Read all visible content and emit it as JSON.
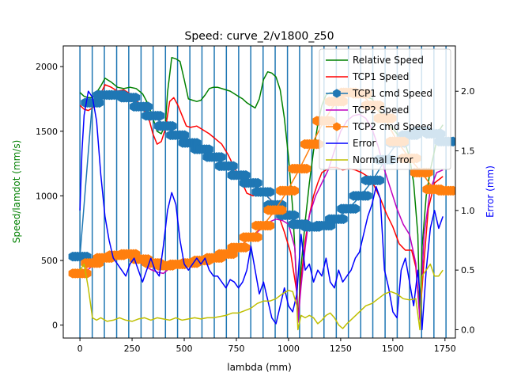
{
  "chart_data": {
    "type": "line",
    "title": "Speed: curve_2/v1800_z50",
    "xlabel": "lambda (mm)",
    "ylabel": "Speed/lamdot (mm/s)",
    "y2label": "Error (mm)",
    "xlim": [
      -80,
      1800
    ],
    "ylim": [
      -100,
      2160
    ],
    "y2lim": [
      -0.07,
      2.38
    ],
    "xticks": [
      0,
      250,
      500,
      750,
      1000,
      1250,
      1500,
      1750
    ],
    "yticks": [
      0,
      500,
      1000,
      1500,
      2000
    ],
    "y2ticks": [
      0.0,
      0.5,
      1.0,
      1.5,
      2.0
    ],
    "xtick_labels": [
      "0",
      "250",
      "500",
      "750",
      "1000",
      "1250",
      "1500",
      "1750"
    ],
    "ytick_labels": [
      "0",
      "500",
      "1000",
      "1500",
      "2000"
    ],
    "y2tick_labels": [
      "0.0",
      "0.5",
      "1.0",
      "1.5",
      "2.0"
    ],
    "vlines": [
      0,
      59,
      117,
      176,
      234,
      293,
      351,
      410,
      468,
      527,
      585,
      644,
      702,
      761,
      819,
      878,
      936,
      995,
      1053,
      1112,
      1170,
      1229,
      1287,
      1346,
      1404,
      1463,
      1521,
      1580,
      1638,
      1697,
      1755
    ],
    "legend_position": "upper right",
    "grid": false,
    "series": [
      {
        "name": "Relative Speed",
        "color": "#008000",
        "axis": "left",
        "style": "line",
        "x": [
          0,
          20,
          40,
          60,
          80,
          100,
          120,
          150,
          180,
          210,
          240,
          270,
          300,
          330,
          350,
          370,
          390,
          410,
          420,
          440,
          460,
          480,
          500,
          520,
          540,
          560,
          580,
          600,
          620,
          640,
          660,
          680,
          700,
          720,
          740,
          760,
          780,
          800,
          820,
          840,
          860,
          880,
          900,
          920,
          940,
          960,
          980,
          1000,
          1020,
          1040,
          1045,
          1060,
          1080,
          1100,
          1120,
          1140,
          1160,
          1180,
          1200,
          1220,
          1240,
          1260,
          1280,
          1300,
          1320,
          1340,
          1360,
          1380,
          1400,
          1420,
          1440,
          1460,
          1480,
          1500,
          1520,
          1540,
          1560,
          1580,
          1600,
          1620,
          1630,
          1640,
          1660,
          1680,
          1700,
          1720,
          1740
        ],
        "y": [
          1800,
          1770,
          1760,
          1760,
          1800,
          1850,
          1910,
          1880,
          1840,
          1830,
          1840,
          1830,
          1790,
          1700,
          1600,
          1500,
          1480,
          1560,
          1800,
          2070,
          2060,
          2040,
          1900,
          1750,
          1740,
          1730,
          1740,
          1780,
          1830,
          1840,
          1840,
          1830,
          1820,
          1810,
          1790,
          1770,
          1750,
          1720,
          1700,
          1680,
          1750,
          1900,
          1960,
          1950,
          1920,
          1820,
          1600,
          1300,
          900,
          300,
          20,
          450,
          800,
          1100,
          1350,
          1550,
          1700,
          1780,
          1800,
          1800,
          1790,
          1780,
          1770,
          1770,
          1770,
          1770,
          1770,
          1760,
          1750,
          1700,
          1650,
          1600,
          1550,
          1520,
          1480,
          1440,
          1400,
          1300,
          1100,
          700,
          50,
          600,
          1000,
          1200,
          1350,
          1500,
          1550
        ]
      },
      {
        "name": "TCP1 Speed",
        "color": "#ff0000",
        "axis": "left",
        "style": "line",
        "x": [
          0,
          20,
          40,
          60,
          80,
          100,
          120,
          150,
          180,
          210,
          240,
          270,
          300,
          330,
          350,
          370,
          390,
          410,
          430,
          450,
          470,
          490,
          510,
          530,
          560,
          590,
          620,
          650,
          680,
          710,
          740,
          770,
          800,
          830,
          860,
          890,
          920,
          950,
          980,
          1010,
          1040,
          1045,
          1060,
          1080,
          1100,
          1120,
          1140,
          1160,
          1180,
          1200,
          1230,
          1260,
          1290,
          1320,
          1350,
          1380,
          1410,
          1440,
          1470,
          1500,
          1530,
          1560,
          1590,
          1610,
          1630,
          1650,
          1670,
          1700,
          1740
        ],
        "y": [
          1700,
          1670,
          1660,
          1680,
          1720,
          1790,
          1860,
          1840,
          1810,
          1820,
          1790,
          1740,
          1680,
          1600,
          1480,
          1400,
          1420,
          1520,
          1730,
          1760,
          1700,
          1620,
          1540,
          1530,
          1540,
          1510,
          1480,
          1440,
          1400,
          1320,
          1220,
          1130,
          1020,
          1000,
          1020,
          1010,
          960,
          860,
          720,
          560,
          250,
          20,
          350,
          650,
          850,
          1000,
          1100,
          1180,
          1200,
          1220,
          1220,
          1200,
          1210,
          1200,
          1180,
          1150,
          1080,
          980,
          860,
          760,
          630,
          580,
          580,
          450,
          60,
          500,
          900,
          1100,
          1150
        ]
      },
      {
        "name": "TCP1 cmd Speed",
        "color": "#1f77b4",
        "axis": "left",
        "style": "hexmarker",
        "x": [
          0,
          59,
          117,
          176,
          234,
          293,
          351,
          410,
          468,
          527,
          585,
          644,
          702,
          761,
          819,
          878,
          936,
          995,
          1053,
          1112,
          1170,
          1229,
          1287,
          1346,
          1404,
          1463,
          1521,
          1580,
          1638,
          1697,
          1755
        ],
        "y": [
          530,
          1720,
          1780,
          1780,
          1760,
          1690,
          1620,
          1540,
          1470,
          1410,
          1360,
          1300,
          1230,
          1160,
          1100,
          1030,
          930,
          850,
          780,
          760,
          770,
          820,
          900,
          1000,
          1120,
          1280,
          1410,
          1470,
          1500,
          1480,
          1420
        ]
      },
      {
        "name": "TCP2 Speed",
        "color": "#bf00bf",
        "axis": "left",
        "style": "line",
        "x": [
          0,
          20,
          40,
          60,
          80,
          100,
          130,
          160,
          190,
          220,
          250,
          280,
          310,
          340,
          370,
          400,
          430,
          460,
          490,
          520,
          550,
          580,
          610,
          640,
          670,
          700,
          730,
          760,
          790,
          820,
          850,
          880,
          910,
          940,
          970,
          1000,
          1030,
          1045,
          1060,
          1080,
          1100,
          1130,
          1160,
          1190,
          1220,
          1250,
          1280,
          1310,
          1340,
          1370,
          1400,
          1430,
          1460,
          1490,
          1520,
          1550,
          1580,
          1610,
          1630,
          1650,
          1680,
          1710,
          1740
        ],
        "y": [
          400,
          410,
          430,
          460,
          490,
          510,
          520,
          540,
          550,
          540,
          520,
          490,
          460,
          430,
          410,
          400,
          440,
          470,
          480,
          480,
          470,
          480,
          490,
          510,
          530,
          550,
          580,
          610,
          640,
          680,
          720,
          760,
          800,
          820,
          810,
          780,
          600,
          20,
          300,
          600,
          850,
          1000,
          1100,
          1200,
          1350,
          1500,
          1580,
          1620,
          1630,
          1600,
          1520,
          1380,
          1200,
          1050,
          900,
          780,
          700,
          480,
          40,
          700,
          1050,
          1180,
          1200
        ]
      },
      {
        "name": "TCP2 cmd Speed",
        "color": "#ff7f0e",
        "axis": "left",
        "style": "hexmarker",
        "x": [
          0,
          59,
          117,
          176,
          234,
          293,
          351,
          410,
          468,
          527,
          585,
          644,
          702,
          761,
          819,
          878,
          936,
          995,
          1053,
          1112,
          1170,
          1229,
          1287,
          1346,
          1404,
          1463,
          1521,
          1580,
          1638,
          1697,
          1755
        ],
        "y": [
          400,
          480,
          520,
          540,
          550,
          510,
          480,
          460,
          470,
          480,
          500,
          520,
          550,
          600,
          680,
          770,
          890,
          1040,
          1210,
          1400,
          1580,
          1730,
          1800,
          1790,
          1700,
          1600,
          1420,
          1290,
          1180,
          1050,
          1040
        ]
      },
      {
        "name": "Error",
        "color": "#0000ff",
        "axis": "right",
        "style": "line",
        "x": [
          0,
          10,
          20,
          40,
          60,
          80,
          100,
          120,
          140,
          160,
          180,
          200,
          220,
          240,
          260,
          280,
          300,
          320,
          340,
          360,
          380,
          400,
          420,
          440,
          460,
          480,
          500,
          520,
          540,
          560,
          580,
          600,
          620,
          640,
          660,
          680,
          700,
          720,
          740,
          760,
          780,
          800,
          820,
          840,
          860,
          880,
          900,
          920,
          940,
          960,
          980,
          1000,
          1020,
          1040,
          1060,
          1080,
          1100,
          1120,
          1140,
          1160,
          1180,
          1200,
          1220,
          1240,
          1260,
          1280,
          1300,
          1320,
          1340,
          1360,
          1380,
          1400,
          1420,
          1440,
          1460,
          1480,
          1500,
          1520,
          1540,
          1560,
          1580,
          1600,
          1620,
          1630,
          1640,
          1660,
          1680,
          1700,
          1720,
          1740
        ],
        "y": [
          1.0,
          1.5,
          1.8,
          2.0,
          1.95,
          1.75,
          1.3,
          0.95,
          0.75,
          0.6,
          0.55,
          0.5,
          0.45,
          0.55,
          0.6,
          0.5,
          0.4,
          0.5,
          0.6,
          0.5,
          0.45,
          0.7,
          1.0,
          1.15,
          1.05,
          0.75,
          0.55,
          0.5,
          0.55,
          0.6,
          0.55,
          0.6,
          0.5,
          0.45,
          0.45,
          0.4,
          0.35,
          0.42,
          0.4,
          0.35,
          0.4,
          0.5,
          0.7,
          0.5,
          0.3,
          0.4,
          0.25,
          0.1,
          0.05,
          0.2,
          0.35,
          0.2,
          0.15,
          0.3,
          0.8,
          0.5,
          0.55,
          0.4,
          0.5,
          0.45,
          0.6,
          0.4,
          0.35,
          0.5,
          0.4,
          0.45,
          0.5,
          0.6,
          0.65,
          0.8,
          0.95,
          1.05,
          1.2,
          1.1,
          0.5,
          0.35,
          0.15,
          0.1,
          0.5,
          0.6,
          0.4,
          0.2,
          0.5,
          0.3,
          0.0,
          0.5,
          0.85,
          1.0,
          0.85,
          0.95
        ]
      },
      {
        "name": "Normal Error",
        "color": "#bfbf00",
        "axis": "right",
        "style": "line",
        "x": [
          0,
          20,
          40,
          60,
          80,
          100,
          130,
          160,
          190,
          220,
          250,
          280,
          310,
          340,
          370,
          400,
          430,
          460,
          490,
          520,
          550,
          580,
          610,
          640,
          670,
          700,
          730,
          760,
          790,
          820,
          850,
          880,
          910,
          940,
          970,
          1000,
          1020,
          1040,
          1045,
          1060,
          1080,
          1100,
          1120,
          1140,
          1160,
          1180,
          1200,
          1220,
          1240,
          1260,
          1280,
          1310,
          1340,
          1370,
          1400,
          1430,
          1460,
          1490,
          1520,
          1550,
          1580,
          1610,
          1630,
          1640,
          1660,
          1680,
          1700,
          1720,
          1740
        ],
        "y": [
          0.5,
          0.55,
          0.35,
          0.1,
          0.08,
          0.1,
          0.07,
          0.08,
          0.1,
          0.08,
          0.07,
          0.09,
          0.1,
          0.08,
          0.1,
          0.09,
          0.08,
          0.1,
          0.08,
          0.09,
          0.1,
          0.09,
          0.1,
          0.1,
          0.11,
          0.12,
          0.14,
          0.14,
          0.16,
          0.18,
          0.22,
          0.24,
          0.24,
          0.26,
          0.3,
          0.33,
          0.32,
          0.2,
          0.0,
          0.12,
          0.1,
          0.12,
          0.1,
          0.05,
          0.08,
          0.12,
          0.14,
          0.1,
          0.04,
          0.01,
          0.05,
          0.1,
          0.15,
          0.2,
          0.22,
          0.26,
          0.3,
          0.32,
          0.3,
          0.26,
          0.25,
          0.26,
          0.0,
          0.45,
          0.5,
          0.55,
          0.45,
          0.45,
          0.5
        ]
      }
    ]
  }
}
